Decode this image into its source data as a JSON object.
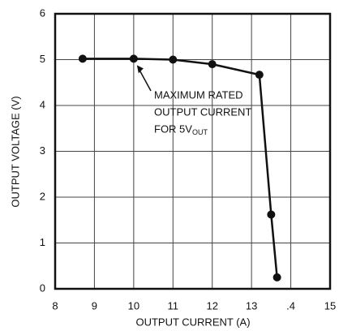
{
  "chart_data": {
    "type": "line",
    "x_label": "OUTPUT CURRENT (A)",
    "y_label": "OUTPUT VOLTAGE (V)",
    "x": [
      8.7,
      10,
      11,
      12,
      13.2,
      13.5,
      13.65
    ],
    "values": [
      5.02,
      5.02,
      5.0,
      4.9,
      4.67,
      1.62,
      0.25
    ],
    "color": "#111111",
    "xlim": [
      8,
      15
    ],
    "xticks": [
      8,
      9,
      10,
      11,
      12,
      13,
      {
        "value": 14,
        "label": ".4"
      },
      15
    ],
    "ylim": [
      0,
      6
    ],
    "yticks": [
      0,
      1,
      2,
      3,
      4,
      5,
      6
    ],
    "grid": true,
    "annotation": {
      "lines": [
        "MAXIMUM RATED",
        "OUTPUT CURRENT",
        "FOR 5V"
      ],
      "subscript": "OUT",
      "x": 10,
      "y": 5.02
    }
  }
}
